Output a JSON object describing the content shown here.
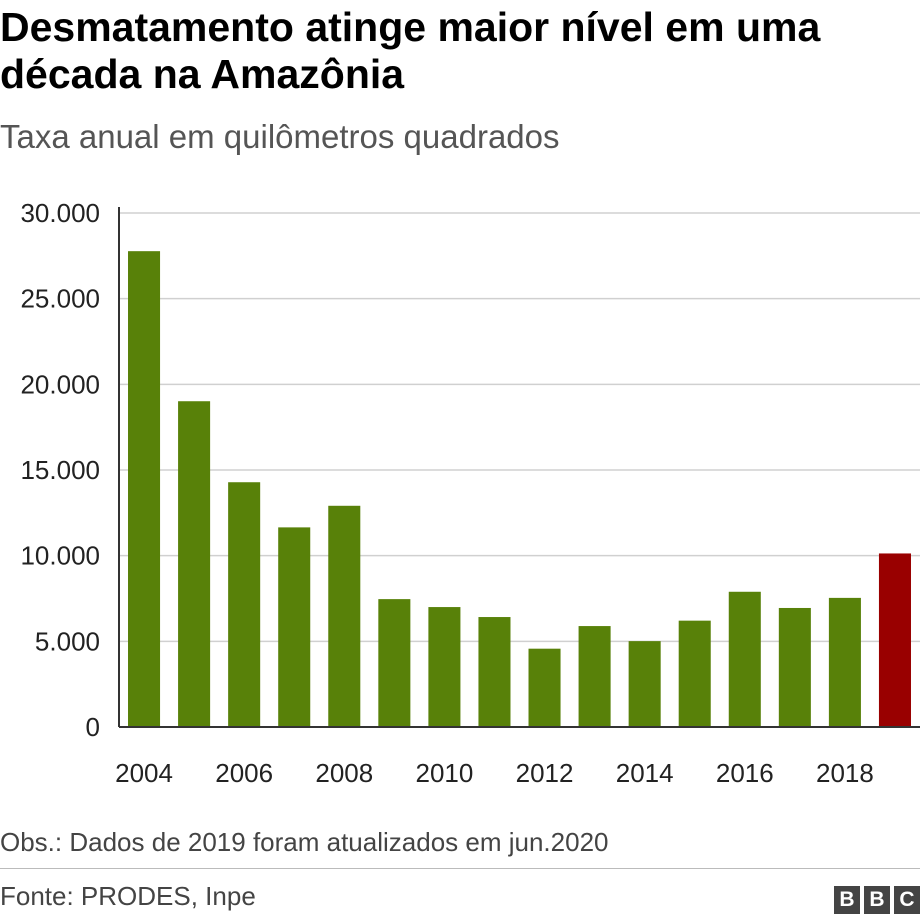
{
  "title": "Desmatamento atinge maior nível em uma década na Amazônia",
  "subtitle": "Taxa anual em quilômetros quadrados",
  "note": "Obs.: Dados de 2019 foram atualizados em jun.2020",
  "source": "Fonte: PRODES, Inpe",
  "logo": [
    "B",
    "B",
    "C"
  ],
  "colors": {
    "bar": "#588109",
    "highlight": "#990000",
    "grid": "#d0d0d0",
    "axis": "#333333"
  },
  "chart_data": {
    "type": "bar",
    "title": "Desmatamento atinge maior nível em uma década na Amazônia",
    "subtitle": "Taxa anual em quilômetros quadrados",
    "categories": [
      "2004",
      "2005",
      "2006",
      "2007",
      "2008",
      "2009",
      "2010",
      "2011",
      "2012",
      "2013",
      "2014",
      "2015",
      "2016",
      "2017",
      "2018",
      "2019"
    ],
    "values": [
      27772,
      19014,
      14286,
      11651,
      12911,
      7464,
      7000,
      6418,
      4571,
      5891,
      5012,
      6207,
      7893,
      6947,
      7536,
      10129
    ],
    "highlight_index": 15,
    "x_tick_labels": [
      "2004",
      "",
      "2006",
      "",
      "2008",
      "",
      "2010",
      "",
      "2012",
      "",
      "2014",
      "",
      "2016",
      "",
      "2018",
      ""
    ],
    "y_ticks": [
      0,
      5000,
      10000,
      15000,
      20000,
      25000,
      30000
    ],
    "y_tick_labels": [
      "0",
      "5.000",
      "10.000",
      "15.000",
      "20.000",
      "25.000",
      "30.000"
    ],
    "ylim": [
      0,
      30000
    ],
    "xlabel": "",
    "ylabel": "",
    "grid": true,
    "legend": "none"
  }
}
